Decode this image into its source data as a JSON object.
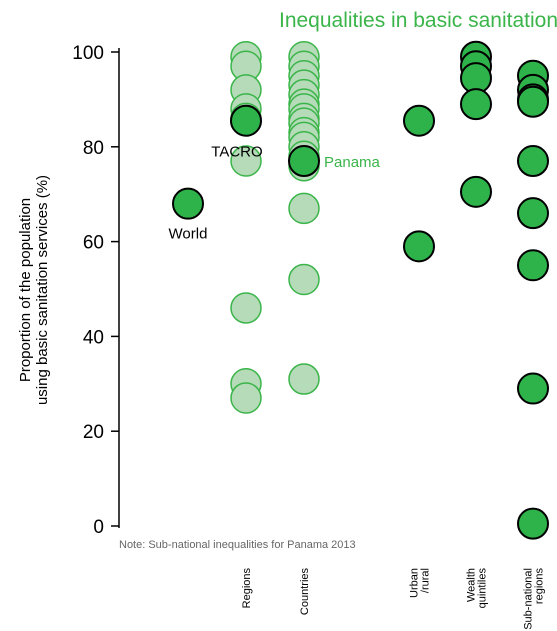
{
  "colors": {
    "accent": "#3bb54a",
    "point_fill": "#2db34a",
    "point_stroke": "#000000",
    "faded_fill": "#b5dbb8",
    "faded_stroke": "#3bb54a"
  },
  "chart_data": {
    "type": "scatter",
    "title": "Inequalities in basic sanitation",
    "ylabel_line1": "Proportion of the population",
    "ylabel_line2": "using basic sanitation services (%)",
    "ylim": [
      0,
      100
    ],
    "yticks": [
      0,
      20,
      40,
      60,
      80,
      100
    ],
    "note": "Note: Sub-national inequalities for Panama  2013",
    "categories": [
      {
        "key": "world",
        "label": "",
        "values": [
          68
        ]
      },
      {
        "key": "regions",
        "label": "Regions",
        "values": [
          99,
          97,
          92,
          88,
          86,
          77,
          46,
          30,
          27
        ],
        "highlight": 85.5
      },
      {
        "key": "countries",
        "label": "Countries",
        "values": [
          99,
          97,
          95,
          93,
          91,
          89,
          88,
          86,
          85,
          83,
          82,
          80,
          78,
          76,
          67,
          52,
          31
        ],
        "highlight": 77
      },
      {
        "key": "urban_rural",
        "label": "Urban /rural",
        "values": [
          85.5,
          59
        ]
      },
      {
        "key": "wealth",
        "label": "Wealth quintiles",
        "values": [
          99,
          97,
          94.5,
          89,
          70.5
        ]
      },
      {
        "key": "subnational",
        "label": "Sub-national regions",
        "values": [
          95,
          92,
          90,
          89.5,
          77,
          66,
          55,
          29,
          0.5
        ]
      }
    ],
    "annotations": [
      {
        "key": "world",
        "text": "World"
      },
      {
        "key": "tacro",
        "text": "TACRO"
      },
      {
        "key": "panama",
        "text": "Panama"
      }
    ]
  }
}
